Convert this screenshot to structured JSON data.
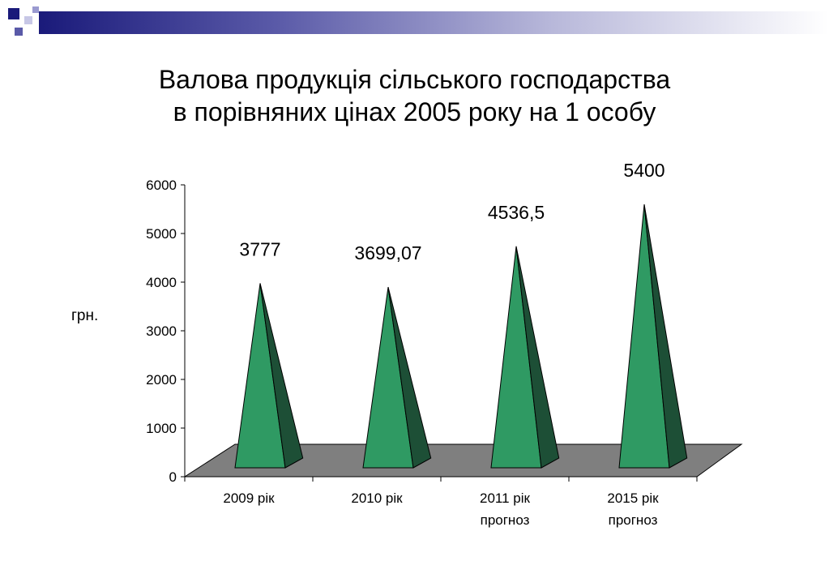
{
  "slide": {
    "title_line1": "Валова продукція сільського господарства",
    "title_line2": "в порівняних цінах 2005 року на 1 особу"
  },
  "colors": {
    "pyramid_front": "#2f9a63",
    "pyramid_side": "#1d4f36",
    "floor": "#7f7f7f",
    "band_dark": "#1a1a7a"
  },
  "chart_data": {
    "type": "bar",
    "style": "3d-pyramid",
    "title": "",
    "ylabel": "грн.",
    "xlabel": "",
    "ylim": [
      0,
      6000
    ],
    "yticks": [
      0,
      1000,
      2000,
      3000,
      4000,
      5000,
      6000
    ],
    "grid": false,
    "legend": "none",
    "categories": [
      [
        "2009 рік"
      ],
      [
        "2010 рік"
      ],
      [
        "2011 рік",
        "прогноз"
      ],
      [
        "2015 рік",
        "прогноз"
      ]
    ],
    "values": [
      3777,
      3699.07,
      4536.5,
      5400
    ],
    "data_labels": [
      "3777",
      "3699,07",
      "4536,5",
      "5400"
    ]
  }
}
